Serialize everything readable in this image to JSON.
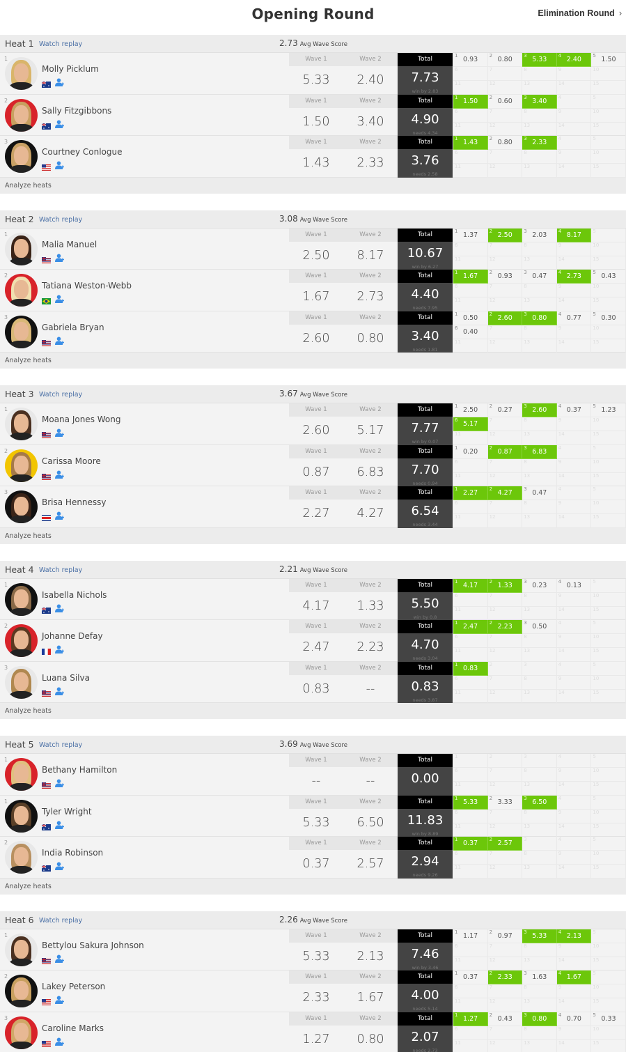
{
  "page": {
    "title": "Opening Round",
    "next_round": "Elimination Round"
  },
  "labels": {
    "wave1": "Wave 1",
    "wave2": "Wave 2",
    "total": "Total",
    "avg": "Avg Wave Score",
    "watch": "Watch replay",
    "analyze": "Analyze heats"
  },
  "colors": {
    "counted_wave": "#6cc70a",
    "total_header": "#000000",
    "total_body": "#444444",
    "link": "#4a6fa5",
    "follow_icon": "#3a8ee6"
  },
  "heats": [
    {
      "name": "Heat 1",
      "avg": "2.73",
      "footer": "Analyze heats",
      "athletes": [
        {
          "rank": "1",
          "name": "Molly Picklum",
          "country": "AUS",
          "avatar_bg": "#e8e8e8",
          "hair": "#d9b56a",
          "wave1": "5.33",
          "wave2": "2.40",
          "total": "7.73",
          "sub": "win by 2.83",
          "waves": [
            [
              "0.93",
              false
            ],
            [
              "0.80",
              false
            ],
            [
              "5.33",
              true
            ],
            [
              "2.40",
              true
            ],
            [
              "1.50",
              false
            ]
          ]
        },
        {
          "rank": "2",
          "name": "Sally Fitzgibbons",
          "country": "AUS",
          "avatar_bg": "#d8232a",
          "hair": "#c8a060",
          "wave1": "1.50",
          "wave2": "3.40",
          "total": "4.90",
          "sub": "needs 4.34",
          "waves": [
            [
              "1.50",
              true
            ],
            [
              "0.60",
              false
            ],
            [
              "3.40",
              true
            ]
          ]
        },
        {
          "rank": "3",
          "name": "Courtney Conlogue",
          "country": "USA",
          "avatar_bg": "#111111",
          "hair": "#c9a165",
          "wave1": "1.43",
          "wave2": "2.33",
          "total": "3.76",
          "sub": "needs 2.58",
          "waves": [
            [
              "1.43",
              true
            ],
            [
              "0.80",
              false
            ],
            [
              "2.33",
              true
            ]
          ]
        }
      ]
    },
    {
      "name": "Heat 2",
      "avg": "3.08",
      "footer": "Analyze heats",
      "athletes": [
        {
          "rank": "1",
          "name": "Malia Manuel",
          "country": "HAW",
          "avatar_bg": "#e8e8e8",
          "hair": "#3a2418",
          "wave1": "2.50",
          "wave2": "8.17",
          "total": "10.67",
          "sub": "win by 6.27",
          "waves": [
            [
              "1.37",
              false
            ],
            [
              "2.50",
              true
            ],
            [
              "2.03",
              false
            ],
            [
              "8.17",
              true
            ]
          ]
        },
        {
          "rank": "2",
          "name": "Tatiana Weston-Webb",
          "country": "BRA",
          "avatar_bg": "#d8232a",
          "hair": "#f0e0b0",
          "wave1": "1.67",
          "wave2": "2.73",
          "total": "4.40",
          "sub": "needs 7.95",
          "waves": [
            [
              "1.67",
              true
            ],
            [
              "0.93",
              false
            ],
            [
              "0.47",
              false
            ],
            [
              "2.73",
              true
            ],
            [
              "0.43",
              false
            ]
          ]
        },
        {
          "rank": "3",
          "name": "Gabriela Bryan",
          "country": "HAW",
          "avatar_bg": "#111111",
          "hair": "#d9b878",
          "wave1": "2.60",
          "wave2": "0.80",
          "total": "3.40",
          "sub": "needs 1.81",
          "waves": [
            [
              "0.50",
              false
            ],
            [
              "2.60",
              true
            ],
            [
              "0.80",
              true
            ],
            [
              "0.77",
              false
            ],
            [
              "0.30",
              false
            ],
            [
              "0.40",
              false
            ]
          ]
        }
      ]
    },
    {
      "name": "Heat 3",
      "avg": "3.67",
      "footer": "Analyze heats",
      "athletes": [
        {
          "rank": "1",
          "name": "Moana Jones Wong",
          "country": "HAW",
          "avatar_bg": "#e8e8e8",
          "hair": "#4a3020",
          "wave1": "2.60",
          "wave2": "5.17",
          "total": "7.77",
          "sub": "win by 0.07",
          "waves": [
            [
              "2.50",
              false
            ],
            [
              "0.27",
              false
            ],
            [
              "2.60",
              true
            ],
            [
              "0.37",
              false
            ],
            [
              "1.23",
              false
            ],
            [
              "5.17",
              true
            ]
          ]
        },
        {
          "rank": "2",
          "name": "Carissa Moore",
          "country": "HAW",
          "avatar_bg": "#f2c500",
          "hair": "#a57a48",
          "wave1": "0.87",
          "wave2": "6.83",
          "total": "7.70",
          "sub": "needs 0.94",
          "waves": [
            [
              "0.20",
              false
            ],
            [
              "0.87",
              true
            ],
            [
              "6.83",
              true
            ]
          ]
        },
        {
          "rank": "3",
          "name": "Brisa Hennessy",
          "country": "CRC",
          "avatar_bg": "#111111",
          "hair": "#3a2418",
          "wave1": "2.27",
          "wave2": "4.27",
          "total": "6.54",
          "sub": "needs 3.44",
          "waves": [
            [
              "2.27",
              true
            ],
            [
              "4.27",
              true
            ],
            [
              "0.47",
              false
            ]
          ]
        }
      ]
    },
    {
      "name": "Heat 4",
      "avg": "2.21",
      "footer": "Analyze heats",
      "athletes": [
        {
          "rank": "1",
          "name": "Isabella Nichols",
          "country": "AUS",
          "avatar_bg": "#111111",
          "hair": "#8a6a48",
          "wave1": "4.17",
          "wave2": "1.33",
          "total": "5.50",
          "sub": "win by 0.8",
          "waves": [
            [
              "4.17",
              true
            ],
            [
              "1.33",
              true
            ],
            [
              "0.23",
              false
            ],
            [
              "0.13",
              false
            ]
          ]
        },
        {
          "rank": "2",
          "name": "Johanne Defay",
          "country": "FRA",
          "avatar_bg": "#d8232a",
          "hair": "#5a3a22",
          "wave1": "2.47",
          "wave2": "2.23",
          "total": "4.70",
          "sub": "needs 3.04",
          "waves": [
            [
              "2.47",
              true
            ],
            [
              "2.23",
              true
            ],
            [
              "0.50",
              false
            ]
          ]
        },
        {
          "rank": "3",
          "name": "Luana Silva",
          "country": "HAW",
          "avatar_bg": "#e8e8e8",
          "hair": "#b08850",
          "wave1": "0.83",
          "wave2": "--",
          "total": "0.83",
          "sub": "needs 3.87",
          "waves": [
            [
              "0.83",
              true
            ]
          ]
        }
      ]
    },
    {
      "name": "Heat 5",
      "avg": "3.69",
      "footer": "Analyze heats",
      "athletes": [
        {
          "rank": "1",
          "name": "Bethany Hamilton",
          "country": "HAW",
          "avatar_bg": "#d8232a",
          "hair": "#e0c080",
          "wave1": "--",
          "wave2": "--",
          "total": "0.00",
          "sub": "",
          "waves": []
        },
        {
          "rank": "1",
          "name": "Tyler Wright",
          "country": "AUS",
          "avatar_bg": "#111111",
          "hair": "#5a4028",
          "wave1": "5.33",
          "wave2": "6.50",
          "total": "11.83",
          "sub": "win by 8.89",
          "waves": [
            [
              "5.33",
              true
            ],
            [
              "3.33",
              false
            ],
            [
              "6.50",
              true
            ]
          ]
        },
        {
          "rank": "2",
          "name": "India Robinson",
          "country": "AUS",
          "avatar_bg": "#e8e8e8",
          "hair": "#b89060",
          "wave1": "0.37",
          "wave2": "2.57",
          "total": "2.94",
          "sub": "needs 9.26",
          "waves": [
            [
              "0.37",
              true
            ],
            [
              "2.57",
              true
            ]
          ]
        }
      ]
    },
    {
      "name": "Heat 6",
      "avg": "2.26",
      "footer": null,
      "athletes": [
        {
          "rank": "1",
          "name": "Bettylou Sakura Johnson",
          "country": "HAW",
          "avatar_bg": "#e8e8e8",
          "hair": "#4a3020",
          "wave1": "5.33",
          "wave2": "2.13",
          "total": "7.46",
          "sub": "win by 3.46",
          "waves": [
            [
              "1.17",
              false
            ],
            [
              "0.97",
              false
            ],
            [
              "5.33",
              true
            ],
            [
              "2.13",
              true
            ]
          ]
        },
        {
          "rank": "2",
          "name": "Lakey Peterson",
          "country": "USA",
          "avatar_bg": "#111111",
          "hair": "#c8a060",
          "wave1": "2.33",
          "wave2": "1.67",
          "total": "4.00",
          "sub": "needs 5.14",
          "waves": [
            [
              "0.37",
              false
            ],
            [
              "2.33",
              true
            ],
            [
              "1.63",
              false
            ],
            [
              "1.67",
              true
            ]
          ]
        },
        {
          "rank": "3",
          "name": "Caroline Marks",
          "country": "USA",
          "avatar_bg": "#d8232a",
          "hair": "#d0a868",
          "wave1": "1.27",
          "wave2": "0.80",
          "total": "2.07",
          "sub": "needs 2.73",
          "waves": [
            [
              "1.27",
              true
            ],
            [
              "0.43",
              false
            ],
            [
              "0.80",
              true
            ],
            [
              "0.70",
              false
            ],
            [
              "0.33",
              false
            ]
          ]
        }
      ]
    }
  ]
}
